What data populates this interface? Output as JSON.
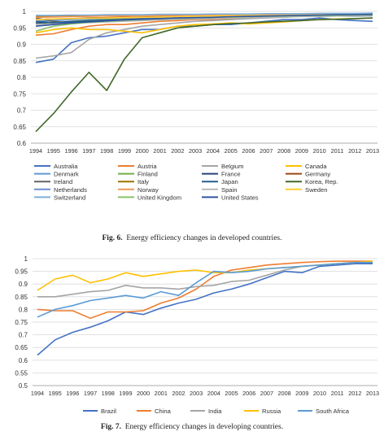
{
  "figures": [
    {
      "fig_label": "Fig. 6.",
      "caption": "Energy efficiency changes in developed countries."
    },
    {
      "fig_label": "Fig. 7.",
      "caption": "Energy efficiency changes in developing countries."
    }
  ],
  "chart_data": [
    {
      "type": "line",
      "title": "",
      "xlabel": "",
      "ylabel": "",
      "ylim": [
        0.6,
        1.0
      ],
      "yticks": [
        "0.6",
        "0.65",
        "0.7",
        "0.75",
        "0.8",
        "0.85",
        "0.9",
        "0.95",
        "1"
      ],
      "grid": "horizontal",
      "legend_position": "bottom",
      "x": [
        "1994",
        "1995",
        "1996",
        "1997",
        "1998",
        "1999",
        "2000",
        "2001",
        "2002",
        "2003",
        "2004",
        "2005",
        "2006",
        "2007",
        "2008",
        "2009",
        "2010",
        "2011",
        "2012",
        "2013"
      ],
      "series": [
        {
          "name": "Australia",
          "color": "#4472c4",
          "values": [
            0.845,
            0.855,
            0.905,
            0.92,
            0.925,
            0.935,
            0.945,
            0.945,
            0.955,
            0.955,
            0.96,
            0.96,
            0.965,
            0.97,
            0.975,
            0.975,
            0.98,
            0.975,
            0.972,
            0.97
          ]
        },
        {
          "name": "Austria",
          "color": "#ed7d31",
          "values": [
            0.928,
            0.932,
            0.945,
            0.955,
            0.96,
            0.96,
            0.965,
            0.97,
            0.972,
            0.975,
            0.975,
            0.978,
            0.98,
            0.982,
            0.984,
            0.985,
            0.987,
            0.988,
            0.99,
            0.99
          ]
        },
        {
          "name": "Belgium",
          "color": "#a5a5a5",
          "values": [
            0.858,
            0.865,
            0.875,
            0.915,
            0.935,
            0.945,
            0.955,
            0.96,
            0.965,
            0.97,
            0.972,
            0.975,
            0.978,
            0.98,
            0.982,
            0.985,
            0.986,
            0.988,
            0.99,
            0.99
          ]
        },
        {
          "name": "Canada",
          "color": "#ffc000",
          "values": [
            0.935,
            0.945,
            0.95,
            0.945,
            0.945,
            0.94,
            0.935,
            0.945,
            0.955,
            0.96,
            0.962,
            0.965,
            0.962,
            0.965,
            0.968,
            0.972,
            0.975,
            0.977,
            0.978,
            0.98
          ]
        },
        {
          "name": "Denmark",
          "color": "#5b9bd5",
          "values": [
            0.97,
            0.972,
            0.975,
            0.976,
            0.978,
            0.98,
            0.982,
            0.984,
            0.985,
            0.986,
            0.987,
            0.988,
            0.989,
            0.99,
            0.99,
            0.991,
            0.992,
            0.992,
            0.993,
            0.993
          ]
        },
        {
          "name": "Finland",
          "color": "#70ad47",
          "values": [
            0.96,
            0.965,
            0.97,
            0.972,
            0.975,
            0.977,
            0.978,
            0.98,
            0.982,
            0.984,
            0.985,
            0.986,
            0.987,
            0.988,
            0.989,
            0.99,
            0.99,
            0.991,
            0.992,
            0.992
          ]
        },
        {
          "name": "France",
          "color": "#264478",
          "values": [
            0.965,
            0.967,
            0.969,
            0.971,
            0.973,
            0.975,
            0.977,
            0.978,
            0.98,
            0.981,
            0.982,
            0.984,
            0.985,
            0.986,
            0.987,
            0.988,
            0.989,
            0.99,
            0.99,
            0.99
          ]
        },
        {
          "name": "Germany",
          "color": "#9e480e",
          "values": [
            0.975,
            0.977,
            0.978,
            0.98,
            0.981,
            0.982,
            0.983,
            0.984,
            0.985,
            0.986,
            0.987,
            0.988,
            0.989,
            0.99,
            0.99,
            0.991,
            0.991,
            0.992,
            0.992,
            0.993
          ]
        },
        {
          "name": "Ireland",
          "color": "#636363",
          "values": [
            0.98,
            0.97,
            0.965,
            0.968,
            0.97,
            0.972,
            0.974,
            0.976,
            0.978,
            0.98,
            0.982,
            0.984,
            0.985,
            0.986,
            0.987,
            0.988,
            0.989,
            0.99,
            0.99,
            0.99
          ]
        },
        {
          "name": "Italy",
          "color": "#997300",
          "values": [
            0.985,
            0.985,
            0.986,
            0.986,
            0.987,
            0.987,
            0.988,
            0.988,
            0.989,
            0.989,
            0.99,
            0.99,
            0.99,
            0.991,
            0.991,
            0.992,
            0.992,
            0.992,
            0.993,
            0.993
          ]
        },
        {
          "name": "Japan",
          "color": "#255e91",
          "values": [
            0.97,
            0.965,
            0.968,
            0.97,
            0.972,
            0.975,
            0.976,
            0.977,
            0.978,
            0.979,
            0.98,
            0.981,
            0.982,
            0.983,
            0.984,
            0.985,
            0.985,
            0.986,
            0.986,
            0.987
          ]
        },
        {
          "name": "Korea, Rep.",
          "color": "#43682b",
          "values": [
            0.635,
            0.69,
            0.755,
            0.815,
            0.76,
            0.855,
            0.92,
            0.935,
            0.95,
            0.955,
            0.96,
            0.963,
            0.965,
            0.968,
            0.97,
            0.972,
            0.975,
            0.976,
            0.978,
            0.98
          ]
        },
        {
          "name": "Netherlands",
          "color": "#698ed0",
          "values": [
            0.975,
            0.976,
            0.977,
            0.978,
            0.979,
            0.98,
            0.981,
            0.982,
            0.983,
            0.984,
            0.985,
            0.986,
            0.987,
            0.988,
            0.988,
            0.989,
            0.99,
            0.99,
            0.991,
            0.991
          ]
        },
        {
          "name": "Norway",
          "color": "#f1975a",
          "values": [
            0.982,
            0.983,
            0.984,
            0.985,
            0.986,
            0.986,
            0.987,
            0.988,
            0.988,
            0.989,
            0.989,
            0.99,
            0.99,
            0.99,
            0.991,
            0.991,
            0.992,
            0.992,
            0.992,
            0.993
          ]
        },
        {
          "name": "Spain",
          "color": "#b7b7b7",
          "values": [
            0.96,
            0.962,
            0.964,
            0.966,
            0.968,
            0.97,
            0.972,
            0.974,
            0.976,
            0.977,
            0.978,
            0.98,
            0.981,
            0.982,
            0.983,
            0.984,
            0.985,
            0.986,
            0.987,
            0.988
          ]
        },
        {
          "name": "Sweden",
          "color": "#ffcd33",
          "values": [
            0.975,
            0.977,
            0.978,
            0.979,
            0.98,
            0.981,
            0.982,
            0.983,
            0.984,
            0.985,
            0.986,
            0.987,
            0.988,
            0.988,
            0.989,
            0.99,
            0.99,
            0.991,
            0.991,
            0.992
          ]
        },
        {
          "name": "Switzerland",
          "color": "#7cafdd",
          "values": [
            0.988,
            0.988,
            0.989,
            0.989,
            0.99,
            0.99,
            0.99,
            0.991,
            0.991,
            0.991,
            0.992,
            0.992,
            0.992,
            0.993,
            0.993,
            0.993,
            0.994,
            0.994,
            0.994,
            0.995
          ]
        },
        {
          "name": "United Kingdom",
          "color": "#8cc168",
          "values": [
            0.94,
            0.955,
            0.962,
            0.967,
            0.97,
            0.973,
            0.975,
            0.977,
            0.979,
            0.98,
            0.982,
            0.983,
            0.984,
            0.985,
            0.986,
            0.987,
            0.988,
            0.988,
            0.989,
            0.99
          ]
        },
        {
          "name": "United States",
          "color": "#2f55a4",
          "values": [
            0.955,
            0.96,
            0.965,
            0.968,
            0.971,
            0.974,
            0.976,
            0.978,
            0.98,
            0.981,
            0.982,
            0.984,
            0.985,
            0.986,
            0.987,
            0.988,
            0.989,
            0.99,
            0.99,
            0.991
          ]
        }
      ]
    },
    {
      "type": "line",
      "title": "",
      "xlabel": "",
      "ylabel": "",
      "ylim": [
        0.5,
        1.0
      ],
      "yticks": [
        "0.5",
        "0.55",
        "0.6",
        "0.65",
        "0.7",
        "0.75",
        "0.8",
        "0.85",
        "0.9",
        "0.95",
        "1"
      ],
      "grid": "horizontal",
      "legend_position": "bottom",
      "x": [
        "1994",
        "1995",
        "1996",
        "1997",
        "1998",
        "1999",
        "2000",
        "2001",
        "2002",
        "2003",
        "2004",
        "2005",
        "2006",
        "2007",
        "2008",
        "2009",
        "2010",
        "2011",
        "2012",
        "2013"
      ],
      "series": [
        {
          "name": "Brazil",
          "color": "#4472c4",
          "values": [
            0.62,
            0.68,
            0.71,
            0.73,
            0.755,
            0.79,
            0.78,
            0.805,
            0.825,
            0.84,
            0.865,
            0.88,
            0.9,
            0.925,
            0.95,
            0.945,
            0.97,
            0.975,
            0.98,
            0.98
          ]
        },
        {
          "name": "China",
          "color": "#ed7d31",
          "values": [
            0.8,
            0.795,
            0.795,
            0.765,
            0.79,
            0.79,
            0.795,
            0.825,
            0.845,
            0.88,
            0.93,
            0.955,
            0.965,
            0.975,
            0.98,
            0.985,
            0.988,
            0.99,
            0.99,
            0.99
          ]
        },
        {
          "name": "India",
          "color": "#a5a5a5",
          "values": [
            0.85,
            0.85,
            0.86,
            0.87,
            0.875,
            0.895,
            0.885,
            0.885,
            0.88,
            0.89,
            0.895,
            0.91,
            0.915,
            0.935,
            0.955,
            0.97,
            0.975,
            0.98,
            0.985,
            0.988
          ]
        },
        {
          "name": "Russia",
          "color": "#ffc000",
          "values": [
            0.875,
            0.92,
            0.935,
            0.905,
            0.92,
            0.945,
            0.93,
            0.94,
            0.95,
            0.955,
            0.945,
            0.945,
            0.955,
            0.96,
            0.965,
            0.97,
            0.975,
            0.98,
            0.985,
            0.99
          ]
        },
        {
          "name": "South Africa",
          "color": "#5b9bd5",
          "values": [
            0.77,
            0.8,
            0.815,
            0.835,
            0.845,
            0.855,
            0.845,
            0.87,
            0.855,
            0.905,
            0.95,
            0.945,
            0.95,
            0.96,
            0.965,
            0.97,
            0.975,
            0.98,
            0.985,
            0.985
          ]
        }
      ]
    }
  ]
}
